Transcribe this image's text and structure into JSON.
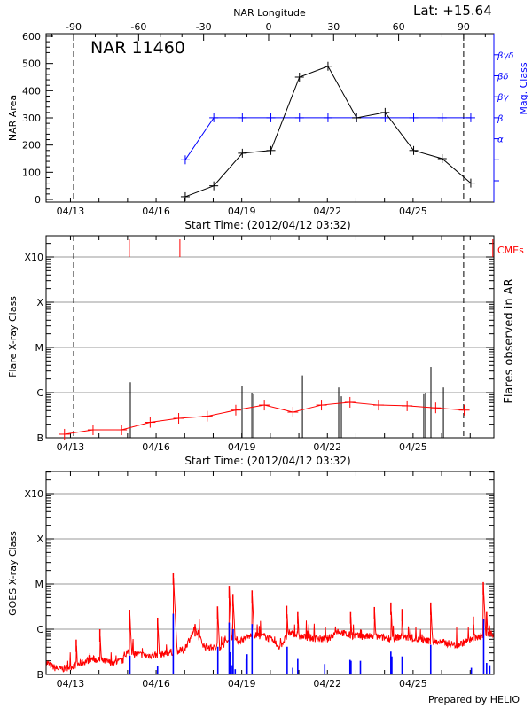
{
  "header": {
    "lat_label": "Lat: +15.64",
    "footer": "Prepared by HELIO"
  },
  "colors": {
    "area": "#000000",
    "mag_class": "#0000ff",
    "flare_mean": "#ff0000",
    "cme": "#ff0000",
    "goes_long": "#ff0000",
    "goes_events": "#0000ff",
    "grid": "#999999"
  },
  "chart_data": [
    {
      "type": "line",
      "title": "NAR 11460",
      "xlabel": "Start Time: (2012/04/12 03:32)",
      "x2label": "NAR Longitude",
      "ylabel": "NAR Area",
      "y2label": "Mag. Class",
      "x_start": "2012-04-12T03:32",
      "x_ticks": [
        {
          "label": "04/13",
          "date": "2012-04-13T00:00"
        },
        {
          "label": "04/16",
          "date": "2012-04-16T00:00"
        },
        {
          "label": "04/19",
          "date": "2012-04-19T00:00"
        },
        {
          "label": "04/22",
          "date": "2012-04-22T00:00"
        },
        {
          "label": "04/25",
          "date": "2012-04-25T00:00"
        }
      ],
      "longitude_ticks": [
        "-90",
        "-60",
        "-30",
        "0",
        "30",
        "60",
        "90"
      ],
      "limb_markers": [
        "2012-04-13T02:40",
        "2012-04-26T18:30"
      ],
      "ylim": [
        0,
        600
      ],
      "y_ticks": [
        "0",
        "100",
        "200",
        "300",
        "400",
        "500",
        "600"
      ],
      "mag_class_levels": [
        "",
        "",
        "α",
        "β",
        "βγ",
        "βδ",
        "βγδ"
      ],
      "dates": [
        "2012-04-17T00:30",
        "2012-04-18T00:30",
        "2012-04-19T00:30",
        "2012-04-20T00:30",
        "2012-04-21T00:30",
        "2012-04-22T00:30",
        "2012-04-23T00:30",
        "2012-04-24T00:30",
        "2012-04-25T00:30",
        "2012-04-26T00:30",
        "2012-04-27T00:30"
      ],
      "area_values": [
        10,
        50,
        170,
        180,
        450,
        490,
        300,
        320,
        180,
        150,
        60
      ],
      "mag_class_values": [
        1,
        3,
        3,
        3,
        3,
        3,
        3,
        3,
        3,
        3,
        3
      ]
    },
    {
      "type": "line",
      "xlabel": "Start Time: (2012/04/12 03:32)",
      "ylabel": "Flare X-ray Class",
      "y2label": "Flares observed in AR",
      "y_scale": "log",
      "y_ticks": [
        "B",
        "C",
        "M",
        "X",
        "X10"
      ],
      "grid": true,
      "cme_label": "CMEs",
      "cme_dates": [
        "2012-04-15T01:30",
        "2012-04-16T20:00",
        "2012-04-27T19:00"
      ],
      "mean_dates": [
        "2012-04-12T19:00",
        "2012-04-13T19:00",
        "2012-04-14T19:00",
        "2012-04-15T19:00",
        "2012-04-16T19:00",
        "2012-04-17T19:00",
        "2012-04-18T19:00",
        "2012-04-19T19:00",
        "2012-04-20T19:00",
        "2012-04-21T19:00",
        "2012-04-22T19:00",
        "2012-04-23T19:00",
        "2012-04-24T19:00",
        "2012-04-25T19:00",
        "2012-04-26T19:00"
      ],
      "mean_values": [
        "B1.2",
        "B1.5",
        "B1.5",
        "B2.2",
        "B2.7",
        "B3.0",
        "B4.1",
        "B5.3",
        "B3.7",
        "B5.3",
        "B6.1",
        "B5.3",
        "B5.1",
        "B4.6",
        "B4.1"
      ],
      "flares": [
        {
          "date": "2012-04-15T02:20",
          "class": "C1.7"
        },
        {
          "date": "2012-04-19T00:15",
          "class": "C1.4"
        },
        {
          "date": "2012-04-19T08:30",
          "class": "C1.0"
        },
        {
          "date": "2012-04-19T10:00",
          "class": "B9.2"
        },
        {
          "date": "2012-04-21T03:00",
          "class": "C2.4"
        },
        {
          "date": "2012-04-22T09:30",
          "class": "C1.3"
        },
        {
          "date": "2012-04-22T11:45",
          "class": "B8.3"
        },
        {
          "date": "2012-04-25T09:00",
          "class": "B9.2"
        },
        {
          "date": "2012-04-25T10:30",
          "class": "B9.6"
        },
        {
          "date": "2012-04-25T15:00",
          "class": "C3.7"
        },
        {
          "date": "2012-04-26T01:30",
          "class": "C1.3"
        }
      ]
    },
    {
      "type": "line",
      "ylabel": "GOES X-ray Class",
      "y_scale": "log",
      "y_ticks": [
        "B",
        "C",
        "M",
        "X",
        "X10"
      ],
      "grid": true,
      "baseline": [
        [
          "2012-04-12T04:00",
          "B1.8"
        ],
        [
          "2012-04-12T10:40",
          "B1.4"
        ],
        [
          "2012-04-12T16:20",
          "B1.3"
        ],
        [
          "2012-04-13T01:00",
          "B1.5"
        ],
        [
          "2012-04-13T09:30",
          "B1.8"
        ],
        [
          "2012-04-13T18:10",
          "B2.2"
        ],
        [
          "2012-04-14T02:45",
          "B2.0"
        ],
        [
          "2012-04-14T11:20",
          "B1.8"
        ],
        [
          "2012-04-14T20:00",
          "B2.0"
        ],
        [
          "2012-04-14T22:50",
          "B3.0"
        ],
        [
          "2012-04-15T07:25",
          "B2.8"
        ],
        [
          "2012-04-15T16:00",
          "B2.6"
        ],
        [
          "2012-04-16T03:30",
          "B2.8"
        ],
        [
          "2012-04-16T15:00",
          "B3.2"
        ],
        [
          "2012-04-16T23:30",
          "B3.5"
        ],
        [
          "2012-04-17T08:10",
          "C1.0"
        ],
        [
          "2012-04-17T16:50",
          "B4.1"
        ],
        [
          "2012-04-18T04:15",
          "B3.8"
        ],
        [
          "2012-04-18T15:45",
          "B6.3"
        ],
        [
          "2012-04-18T21:25",
          "B5.5"
        ],
        [
          "2012-04-19T09:00",
          "B7.4"
        ],
        [
          "2012-04-19T20:20",
          "B6.9"
        ],
        [
          "2012-04-20T07:50",
          "B4.1"
        ],
        [
          "2012-04-20T16:25",
          "B8.5"
        ],
        [
          "2012-04-21T01:00",
          "B6.9"
        ],
        [
          "2012-04-21T12:30",
          "B6.3"
        ],
        [
          "2012-04-22T00:00",
          "B5.9"
        ],
        [
          "2012-04-22T08:40",
          "B9.3"
        ],
        [
          "2012-04-22T17:10",
          "B7.4"
        ],
        [
          "2012-04-23T04:40",
          "B6.9"
        ],
        [
          "2012-04-23T16:10",
          "B6.9"
        ],
        [
          "2012-04-24T03:30",
          "B6.3"
        ],
        [
          "2012-04-24T15:00",
          "B6.9"
        ],
        [
          "2012-04-25T02:30",
          "B5.9"
        ],
        [
          "2012-04-25T14:00",
          "B5.5"
        ],
        [
          "2012-04-26T01:30",
          "B5.1"
        ],
        [
          "2012-04-26T13:00",
          "B4.4"
        ],
        [
          "2012-04-27T00:25",
          "B5.9"
        ],
        [
          "2012-04-27T11:50",
          "B7.4"
        ],
        [
          "2012-04-27T19:00",
          "B8.0"
        ]
      ],
      "peaks": [
        [
          "2012-04-13T04:50",
          "B5.9"
        ],
        [
          "2012-04-14T00:45",
          "C1.0"
        ],
        [
          "2012-04-15T01:45",
          "C2.7"
        ],
        [
          "2012-04-16T01:15",
          "C1.8"
        ],
        [
          "2012-04-16T14:25",
          "M1.8"
        ],
        [
          "2012-04-17T08:45",
          "C1.3"
        ],
        [
          "2012-04-18T03:40",
          "C3.2"
        ],
        [
          "2012-04-18T13:25",
          "C9.1"
        ],
        [
          "2012-04-18T16:35",
          "C6.0"
        ],
        [
          "2012-04-19T08:40",
          "C7.2"
        ],
        [
          "2012-04-20T13:50",
          "C3.3"
        ],
        [
          "2012-04-20T23:05",
          "C2.5"
        ],
        [
          "2012-04-22T19:30",
          "C2.5"
        ],
        [
          "2012-04-23T15:30",
          "C3.1"
        ],
        [
          "2012-04-24T05:20",
          "C3.9"
        ],
        [
          "2012-04-24T14:45",
          "C2.8"
        ],
        [
          "2012-04-25T14:50",
          "C3.9"
        ],
        [
          "2012-04-27T02:40",
          "C1.9"
        ],
        [
          "2012-04-27T11:00",
          "M1.1"
        ],
        [
          "2012-04-27T13:50",
          "C2.5"
        ]
      ],
      "events": [
        [
          "2012-04-15T02:00",
          "B2.6"
        ],
        [
          "2012-04-16T01:15",
          "B1.5"
        ],
        [
          "2012-04-16T14:25",
          "C2.2"
        ],
        [
          "2012-04-18T03:55",
          "B4.1"
        ],
        [
          "2012-04-18T13:25",
          "C1.4"
        ],
        [
          "2012-04-18T14:15",
          "B3.1"
        ],
        [
          "2012-04-18T16:00",
          "B1.6"
        ],
        [
          "2012-04-18T16:45",
          "C1.0"
        ],
        [
          "2012-04-18T18:30",
          "B1.3"
        ],
        [
          "2012-04-19T03:45",
          "B2.2"
        ],
        [
          "2012-04-19T04:30",
          "B2.8"
        ],
        [
          "2012-04-19T08:40",
          "C1.3"
        ],
        [
          "2012-04-20T14:10",
          "B4.1"
        ],
        [
          "2012-04-20T18:50",
          "B1.4"
        ],
        [
          "2012-04-20T23:05",
          "B2.2"
        ],
        [
          "2012-04-21T21:45",
          "B1.7"
        ],
        [
          "2012-04-22T19:00",
          "B2.1"
        ],
        [
          "2012-04-22T19:50",
          "B2.0"
        ],
        [
          "2012-04-23T03:45",
          "B2.0"
        ],
        [
          "2012-04-24T05:20",
          "B3.2"
        ],
        [
          "2012-04-24T06:10",
          "B2.5"
        ],
        [
          "2012-04-24T14:45",
          "B2.5"
        ],
        [
          "2012-04-25T14:50",
          "B4.5"
        ],
        [
          "2012-04-27T01:00",
          "B1.4"
        ],
        [
          "2012-04-27T11:20",
          "C1.7"
        ],
        [
          "2012-04-27T13:50",
          "B1.8"
        ],
        [
          "2012-04-27T16:30",
          "B1.6"
        ]
      ]
    }
  ]
}
